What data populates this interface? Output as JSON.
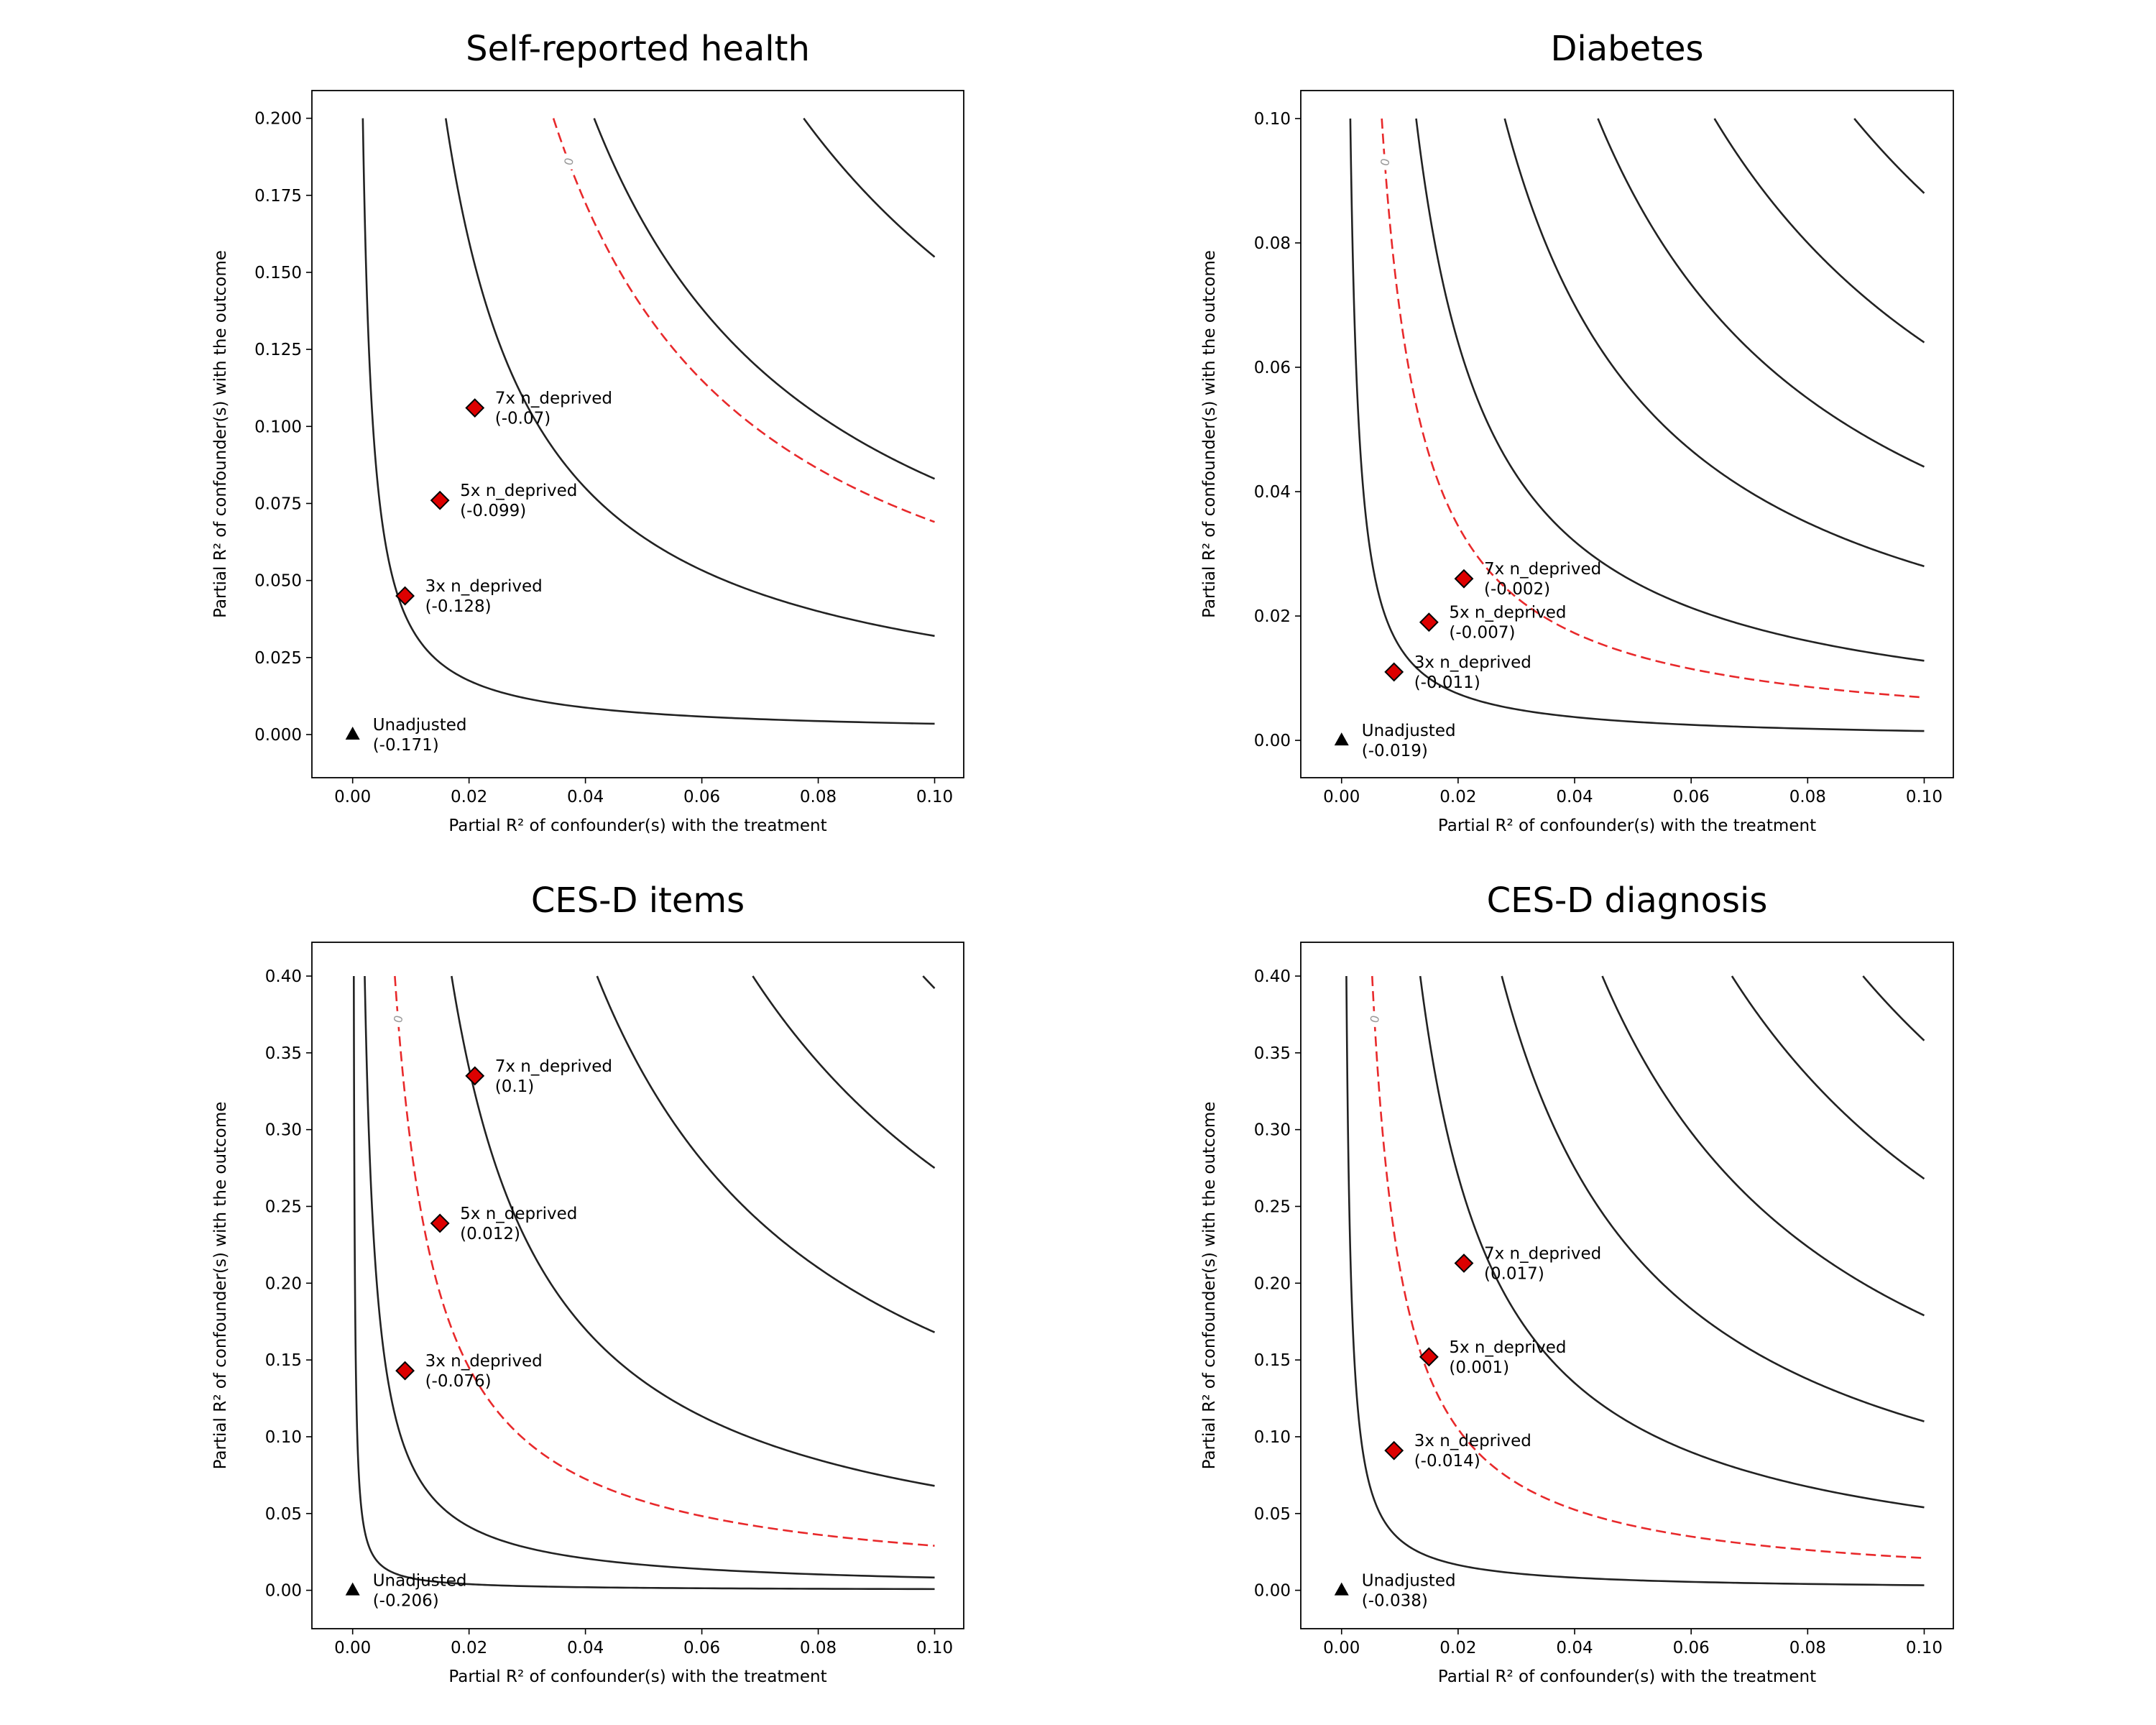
{
  "chart_data": [
    {
      "type": "contour",
      "title": "Self-reported health",
      "xlabel": "Partial R² of confounder(s) with the treatment",
      "ylabel": "Partial R² of confounder(s) with the outcome",
      "xlim": [
        -0.007,
        0.105
      ],
      "ylim": [
        -0.014,
        0.209
      ],
      "xticks": [
        "0.00",
        "0.02",
        "0.04",
        "0.06",
        "0.08",
        "0.10"
      ],
      "xtick_values": [
        0,
        0.02,
        0.04,
        0.06,
        0.08,
        0.1
      ],
      "yticks": [
        "0.000",
        "0.025",
        "0.050",
        "0.075",
        "0.100",
        "0.125",
        "0.150",
        "0.175",
        "0.200"
      ],
      "ytick_values": [
        0,
        0.025,
        0.05,
        0.075,
        0.1,
        0.125,
        0.15,
        0.175,
        0.2
      ],
      "contour_levels": [
        0.00035,
        0.0032,
        0.0083,
        0.0155,
        0.032,
        0.0555,
        0.0843,
        0.127,
        0.148,
        0.2
      ],
      "threshold_level": 0.0069,
      "threshold_label": "0",
      "points": [
        {
          "marker": "triangle",
          "x": 0.0,
          "y": 0.0,
          "label": "Unadjusted",
          "value": "(-0.171)"
        },
        {
          "marker": "diamond",
          "x": 0.009,
          "y": 0.045,
          "label": "3x n_deprived",
          "value": "(-0.128)"
        },
        {
          "marker": "diamond",
          "x": 0.015,
          "y": 0.076,
          "label": "5x n_deprived",
          "value": "(-0.099)"
        },
        {
          "marker": "diamond",
          "x": 0.021,
          "y": 0.106,
          "label": "7x n_deprived",
          "value": "(-0.07)"
        }
      ]
    },
    {
      "type": "contour",
      "title": "Diabetes",
      "xlabel": "Partial R² of confounder(s) with the treatment",
      "ylabel": "Partial R² of confounder(s) with the outcome",
      "xlim": [
        -0.007,
        0.105
      ],
      "ylim": [
        -0.006,
        0.1045
      ],
      "xticks": [
        "0.00",
        "0.02",
        "0.04",
        "0.06",
        "0.08",
        "0.10"
      ],
      "xtick_values": [
        0,
        0.02,
        0.04,
        0.06,
        0.08,
        0.1
      ],
      "yticks": [
        "0.00",
        "0.02",
        "0.04",
        "0.06",
        "0.08",
        "0.10"
      ],
      "ytick_values": [
        0,
        0.02,
        0.04,
        0.06,
        0.08,
        0.1
      ],
      "contour_levels": [
        0.00015,
        0.00128,
        0.0028,
        0.0044,
        0.0064,
        0.0088,
        0.0114,
        0.0132
      ],
      "threshold_level": 0.00069,
      "threshold_label": "0",
      "points": [
        {
          "marker": "triangle",
          "x": 0.0,
          "y": 0.0,
          "label": "Unadjusted",
          "value": "(-0.019)"
        },
        {
          "marker": "diamond",
          "x": 0.009,
          "y": 0.011,
          "label": "3x n_deprived",
          "value": "(-0.011)"
        },
        {
          "marker": "diamond",
          "x": 0.015,
          "y": 0.019,
          "label": "5x n_deprived",
          "value": "(-0.007)"
        },
        {
          "marker": "diamond",
          "x": 0.021,
          "y": 0.026,
          "label": "7x n_deprived",
          "value": "(-0.002)"
        }
      ]
    },
    {
      "type": "contour",
      "title": "CES-D items",
      "xlabel": "Partial R² of confounder(s) with the treatment",
      "ylabel": "Partial R² of confounder(s) with the outcome",
      "xlim": [
        -0.007,
        0.105
      ],
      "ylim": [
        -0.025,
        0.422
      ],
      "xticks": [
        "0.00",
        "0.02",
        "0.04",
        "0.06",
        "0.08",
        "0.10"
      ],
      "xtick_values": [
        0,
        0.02,
        0.04,
        0.06,
        0.08,
        0.1
      ],
      "yticks": [
        "0.00",
        "0.05",
        "0.10",
        "0.15",
        "0.20",
        "0.25",
        "0.30",
        "0.35",
        "0.40"
      ],
      "ytick_values": [
        0,
        0.05,
        0.1,
        0.15,
        0.2,
        0.25,
        0.3,
        0.35,
        0.4
      ],
      "contour_levels": [
        8e-05,
        0.00083,
        0.0068,
        0.0168,
        0.0275,
        0.0392,
        0.0515,
        0.0663,
        0.0733
      ],
      "threshold_level": 0.0029,
      "threshold_label": "0",
      "points": [
        {
          "marker": "triangle",
          "x": 0.0,
          "y": 0.0,
          "label": "Unadjusted",
          "value": "(-0.206)"
        },
        {
          "marker": "diamond",
          "x": 0.009,
          "y": 0.143,
          "label": "3x n_deprived",
          "value": "(-0.076)"
        },
        {
          "marker": "diamond",
          "x": 0.015,
          "y": 0.239,
          "label": "5x n_deprived",
          "value": "(0.012)"
        },
        {
          "marker": "diamond",
          "x": 0.021,
          "y": 0.335,
          "label": "7x n_deprived",
          "value": "(0.1)"
        }
      ]
    },
    {
      "type": "contour",
      "title": "CES-D diagnosis",
      "xlabel": "Partial R² of confounder(s) with the treatment",
      "ylabel": "Partial R² of confounder(s) with the outcome",
      "xlim": [
        -0.007,
        0.105
      ],
      "ylim": [
        -0.025,
        0.422
      ],
      "xticks": [
        "0.00",
        "0.02",
        "0.04",
        "0.06",
        "0.08",
        "0.10"
      ],
      "xtick_values": [
        0,
        0.02,
        0.04,
        0.06,
        0.08,
        0.1
      ],
      "yticks": [
        "0.00",
        "0.05",
        "0.10",
        "0.15",
        "0.20",
        "0.25",
        "0.30",
        "0.35",
        "0.40"
      ],
      "ytick_values": [
        0,
        0.05,
        0.1,
        0.15,
        0.2,
        0.25,
        0.3,
        0.35,
        0.4
      ],
      "contour_levels": [
        0.00033,
        0.0054,
        0.011,
        0.0179,
        0.0268,
        0.0358,
        0.0505
      ],
      "threshold_level": 0.0021,
      "threshold_label": "0",
      "points": [
        {
          "marker": "triangle",
          "x": 0.0,
          "y": 0.0,
          "label": "Unadjusted",
          "value": "(-0.038)"
        },
        {
          "marker": "diamond",
          "x": 0.009,
          "y": 0.091,
          "label": "3x n_deprived",
          "value": "(-0.014)"
        },
        {
          "marker": "diamond",
          "x": 0.015,
          "y": 0.152,
          "label": "5x n_deprived",
          "value": "(0.001)"
        },
        {
          "marker": "diamond",
          "x": 0.021,
          "y": 0.213,
          "label": "7x n_deprived",
          "value": "(0.017)"
        }
      ]
    }
  ],
  "colors": {
    "contour": "#222222",
    "threshold": "#e8292b",
    "marker_fill": "#dd0000",
    "marker_edge": "#000000",
    "contour_label": "#999999"
  }
}
